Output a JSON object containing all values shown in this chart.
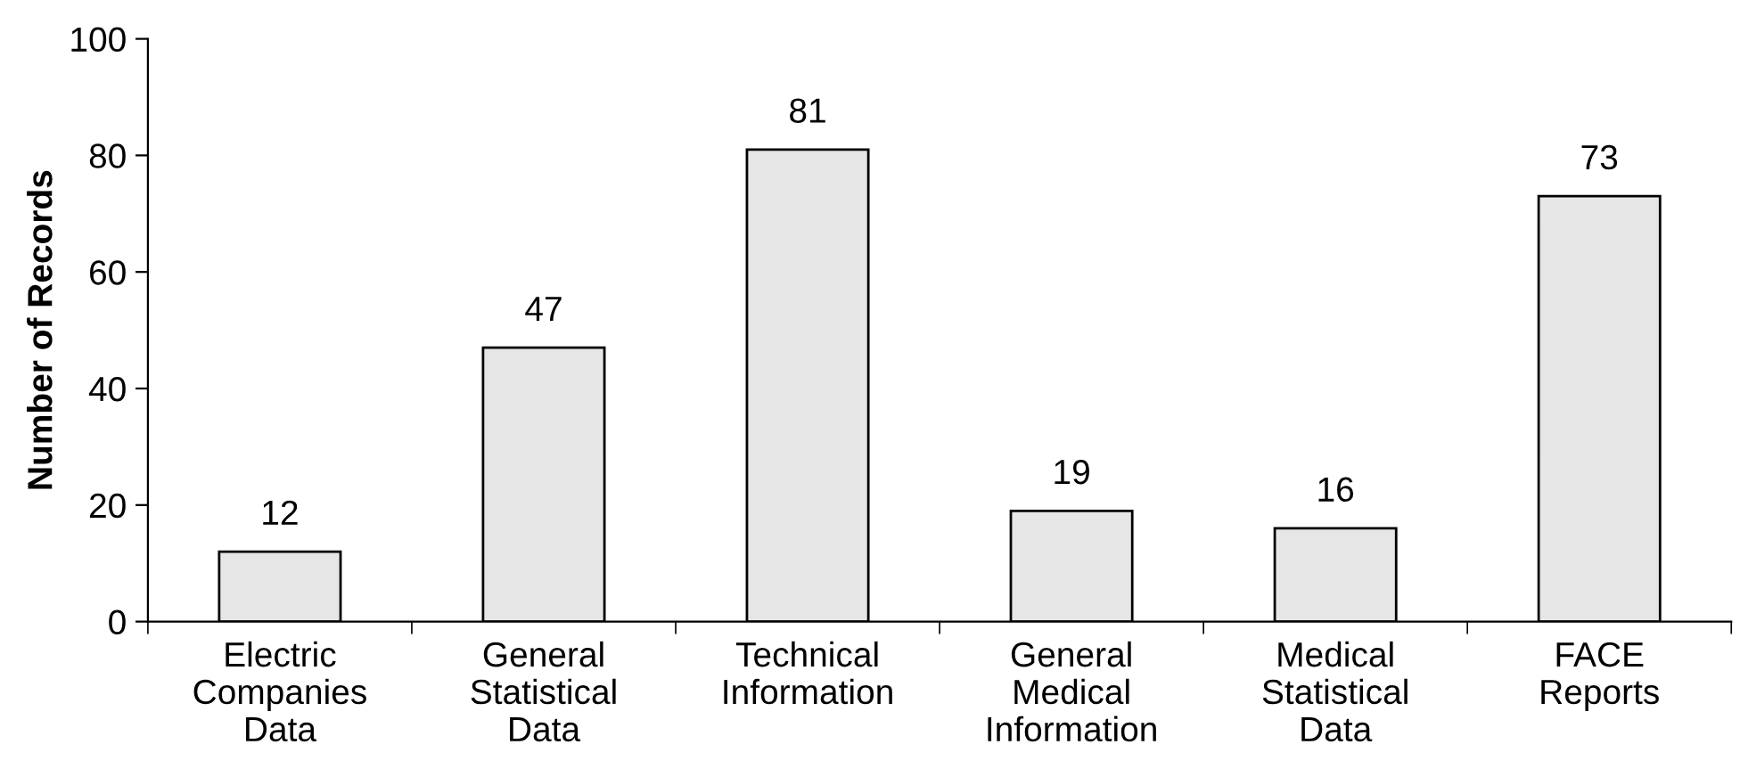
{
  "chart_data": {
    "type": "bar",
    "ylabel": "Number of Records",
    "categories": [
      "Electric\nCompanies\nData",
      "General\nStatistical\nData",
      "Technical\nInformation",
      "General\nMedical\nInformation",
      "Medical\nStatistical\nData",
      "FACE\nReports"
    ],
    "values": [
      12,
      47,
      81,
      19,
      16,
      73
    ],
    "color": "#e6e6e6",
    "data_labels": true,
    "ylim": [
      0,
      100
    ],
    "yticks": [
      0,
      20,
      40,
      60,
      80,
      100
    ],
    "grid": false,
    "legend": false
  }
}
